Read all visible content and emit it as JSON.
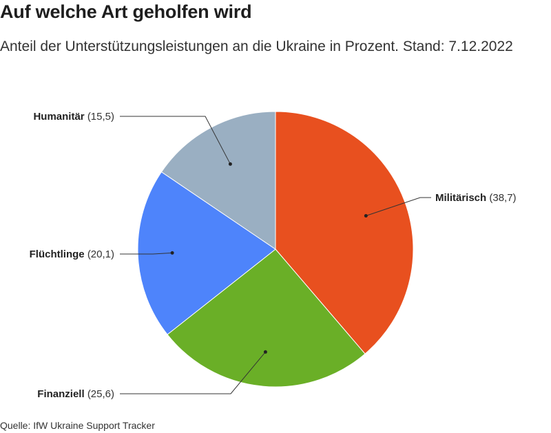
{
  "title": "Auf welche Art geholfen wird",
  "subtitle": "Anteil der Unterstützungsleistungen an die Ukraine in Prozent. Stand: 7.12.2022",
  "source": "Quelle: IfW Ukraine Support Tracker",
  "chart_data": {
    "type": "pie",
    "title": "Auf welche Art geholfen wird",
    "subtitle": "Anteil der Unterstützungsleistungen an die Ukraine in Prozent. Stand: 7.12.2022",
    "slices": [
      {
        "label": "Militärisch",
        "value": 38.7,
        "value_text": "(38,7)",
        "color": "#e8501f"
      },
      {
        "label": "Finanziell",
        "value": 25.6,
        "value_text": "(25,6)",
        "color": "#6aaf27"
      },
      {
        "label": "Flüchtlinge",
        "value": 20.1,
        "value_text": "(20,1)",
        "color": "#4e84fb"
      },
      {
        "label": "Humanitär",
        "value": 15.5,
        "value_text": "(15,5)",
        "color": "#9aafc2"
      }
    ],
    "start_angle": "12 o'clock",
    "direction": "clockwise",
    "legend": "none"
  }
}
